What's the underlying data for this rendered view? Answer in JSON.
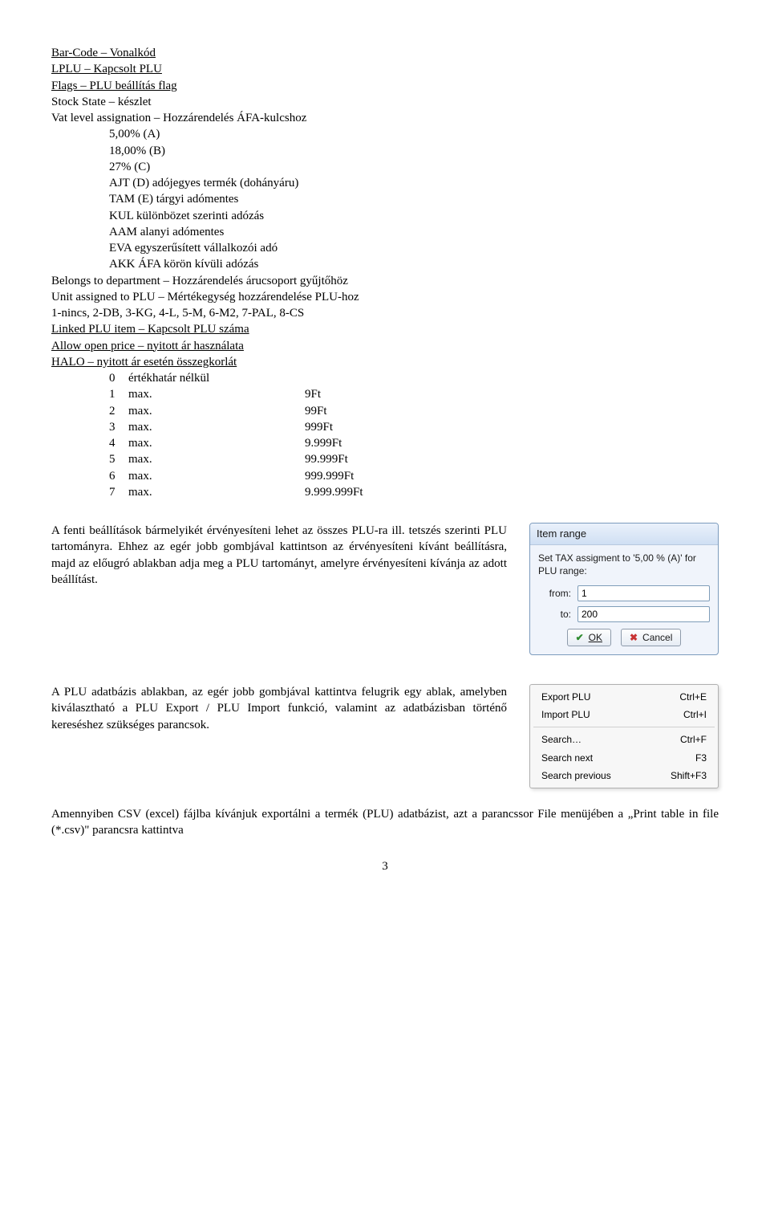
{
  "doc": {
    "lines_top": [
      {
        "u": true,
        "text": "Bar-Code – Vonalkód"
      },
      {
        "u": true,
        "text": "LPLU – Kapcsolt PLU"
      },
      {
        "u": true,
        "text": "Flags – PLU beállítás flag"
      },
      {
        "u": false,
        "text": "Stock State – készlet"
      },
      {
        "u": false,
        "text": "Vat level assignation – Hozzárendelés ÁFA-kulcshoz"
      }
    ],
    "vat_levels": [
      "5,00% (A)",
      "18,00% (B)",
      "27% (C)",
      "AJT (D) adójegyes termék (dohányáru)",
      "TAM (E) tárgyi adómentes",
      "KUL különbözet szerinti adózás",
      "AAM alanyi adómentes",
      "EVA egyszerűsített vállalkozói adó",
      "AKK ÁFA körön kívüli adózás"
    ],
    "lines_mid": [
      "Belongs to department – Hozzárendelés árucsoport gyűjtőhöz",
      "Unit assigned to PLU – Mértékegység hozzárendelése PLU-hoz",
      "1-nincs, 2-DB, 3-KG, 4-L, 5-M, 6-M2, 7-PAL, 8-CS"
    ],
    "linked_plu": "Linked PLU item – Kapcsolt PLU száma",
    "allow_open": "Allow open price – nyitott ár használata",
    "halo": "HALO – nyitott ár esetén összegkorlát",
    "halo_items": [
      {
        "n": "0",
        "a": "értékhatár nélkül",
        "b": ""
      },
      {
        "n": "1",
        "a": "max.",
        "b": "9Ft"
      },
      {
        "n": "2",
        "a": "max.",
        "b": "99Ft"
      },
      {
        "n": "3",
        "a": "max.",
        "b": "999Ft"
      },
      {
        "n": "4",
        "a": "max.",
        "b": "9.999Ft"
      },
      {
        "n": "5",
        "a": "max.",
        "b": "99.999Ft"
      },
      {
        "n": "6",
        "a": "max.",
        "b": "999.999Ft"
      },
      {
        "n": "7",
        "a": "max.",
        "b": "9.999.999Ft"
      }
    ],
    "para1": "A fenti beállítások bármelyikét érvényesíteni lehet az összes PLU-ra ill. tetszés szerinti PLU tartományra. Ehhez az egér jobb gombjával kattintson az érvényesíteni kívánt beállításra, majd az előugró ablakban adja meg a PLU tartományt, amelyre érvényesíteni kívánja az adott beállítást.",
    "para2": "A PLU adatbázis ablakban, az egér jobb gombjával kattintva felugrik egy ablak, amelyben kiválasztható a PLU Export / PLU Import funkció, valamint az adatbázisban történő kereséshez szükséges parancsok.",
    "para3": "Amennyiben CSV (excel) fájlba kívánjuk exportálni a termék (PLU) adatbázist, azt a parancssor File menüjében a „Print table in file (*.csv)\" parancsra kattintva",
    "page_number": "3"
  },
  "dialog": {
    "title": "Item range",
    "message": "Set TAX assigment to '5,00 % (A)' for PLU range:",
    "from_label": "from:",
    "to_label": "to:",
    "from_value": "1",
    "to_value": "200",
    "ok_label": "OK",
    "cancel_label": "Cancel"
  },
  "context_menu": {
    "items": [
      {
        "label": "Export PLU",
        "shortcut": "Ctrl+E"
      },
      {
        "label": "Import PLU",
        "shortcut": "Ctrl+I"
      },
      {
        "sep": true
      },
      {
        "label": "Search…",
        "shortcut": "Ctrl+F"
      },
      {
        "label": "Search next",
        "shortcut": "F3"
      },
      {
        "label": "Search previous",
        "shortcut": "Shift+F3"
      }
    ]
  },
  "colors": {
    "panel_border": "#7c9bbd",
    "panel_bg": "#f0f4fb",
    "btn_ok": "#2e8b2e",
    "btn_cancel": "#c83232",
    "menu_bg": "#f7f7f7",
    "menu_border": "#b0b0b0"
  }
}
